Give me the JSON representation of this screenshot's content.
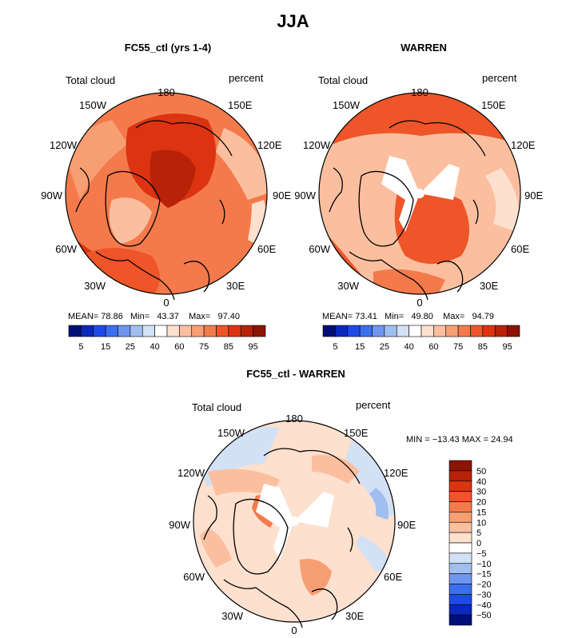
{
  "figure": {
    "title": "JJA"
  },
  "palette": {
    "full_scale": [
      "#000f78",
      "#0a28be",
      "#1e4be6",
      "#3c6ef0",
      "#6e96f0",
      "#a0bef0",
      "#d2e1f5",
      "#ffffff",
      "#fde0ce",
      "#fbbf9f",
      "#f89e73",
      "#f47a4c",
      "#ee5529",
      "#dc3410",
      "#b82208",
      "#8c1404"
    ],
    "diff_scale": [
      "#000f78",
      "#0a28be",
      "#1e4be6",
      "#3c6ef0",
      "#6e96f0",
      "#a0bef0",
      "#d2e1f5",
      "#ffffff",
      "#fde0ce",
      "#fbbf9f",
      "#f89e73",
      "#f47a4c",
      "#ee5529",
      "#dc3410",
      "#b82208",
      "#8c1404"
    ],
    "land_line": "#000000"
  },
  "panels": [
    {
      "title": "FC55_ctl (yrs 1-4)",
      "left_label": "Total cloud",
      "right_label": "percent",
      "lon_labels": [
        "180",
        "150E",
        "120E",
        "90E",
        "60E",
        "30E",
        "0",
        "30W",
        "60W",
        "90W",
        "120W",
        "150W"
      ],
      "stats": {
        "mean_label": "MEAN=",
        "mean": "78.86",
        "min_label": "Min=",
        "min": "43.37",
        "max_label": "Max=",
        "max": "97.40"
      },
      "colorbar_ticks": [
        "5",
        "15",
        "25",
        "40",
        "60",
        "75",
        "85",
        "95"
      ],
      "fill_level": 0.78
    },
    {
      "title": "WARREN",
      "left_label": "Total cloud",
      "right_label": "percent",
      "lon_labels": [
        "180",
        "150E",
        "120E",
        "90E",
        "60E",
        "30E",
        "0",
        "30W",
        "60W",
        "90W",
        "120W",
        "150W"
      ],
      "stats": {
        "mean_label": "MEAN=",
        "mean": "73.41",
        "min_label": "Min=",
        "min": "49.80",
        "max_label": "Max=",
        "max": "94.79"
      },
      "colorbar_ticks": [
        "5",
        "15",
        "25",
        "40",
        "60",
        "75",
        "85",
        "95"
      ],
      "fill_level": 0.73
    },
    {
      "title": "FC55_ctl - WARREN",
      "left_label": "Total cloud",
      "right_label": "percent",
      "lon_labels": [
        "180",
        "150E",
        "120E",
        "90E",
        "60E",
        "30E",
        "0",
        "30W",
        "60W",
        "90W",
        "120W",
        "150W"
      ],
      "stats_text": "MIN = −13.43 MAX =  24.94",
      "colorbar_ticks": [
        "50",
        "40",
        "30",
        "20",
        "15",
        "10",
        "5",
        "0",
        "−5",
        "−10",
        "−15",
        "−20",
        "−30",
        "−40",
        "−50"
      ]
    }
  ]
}
